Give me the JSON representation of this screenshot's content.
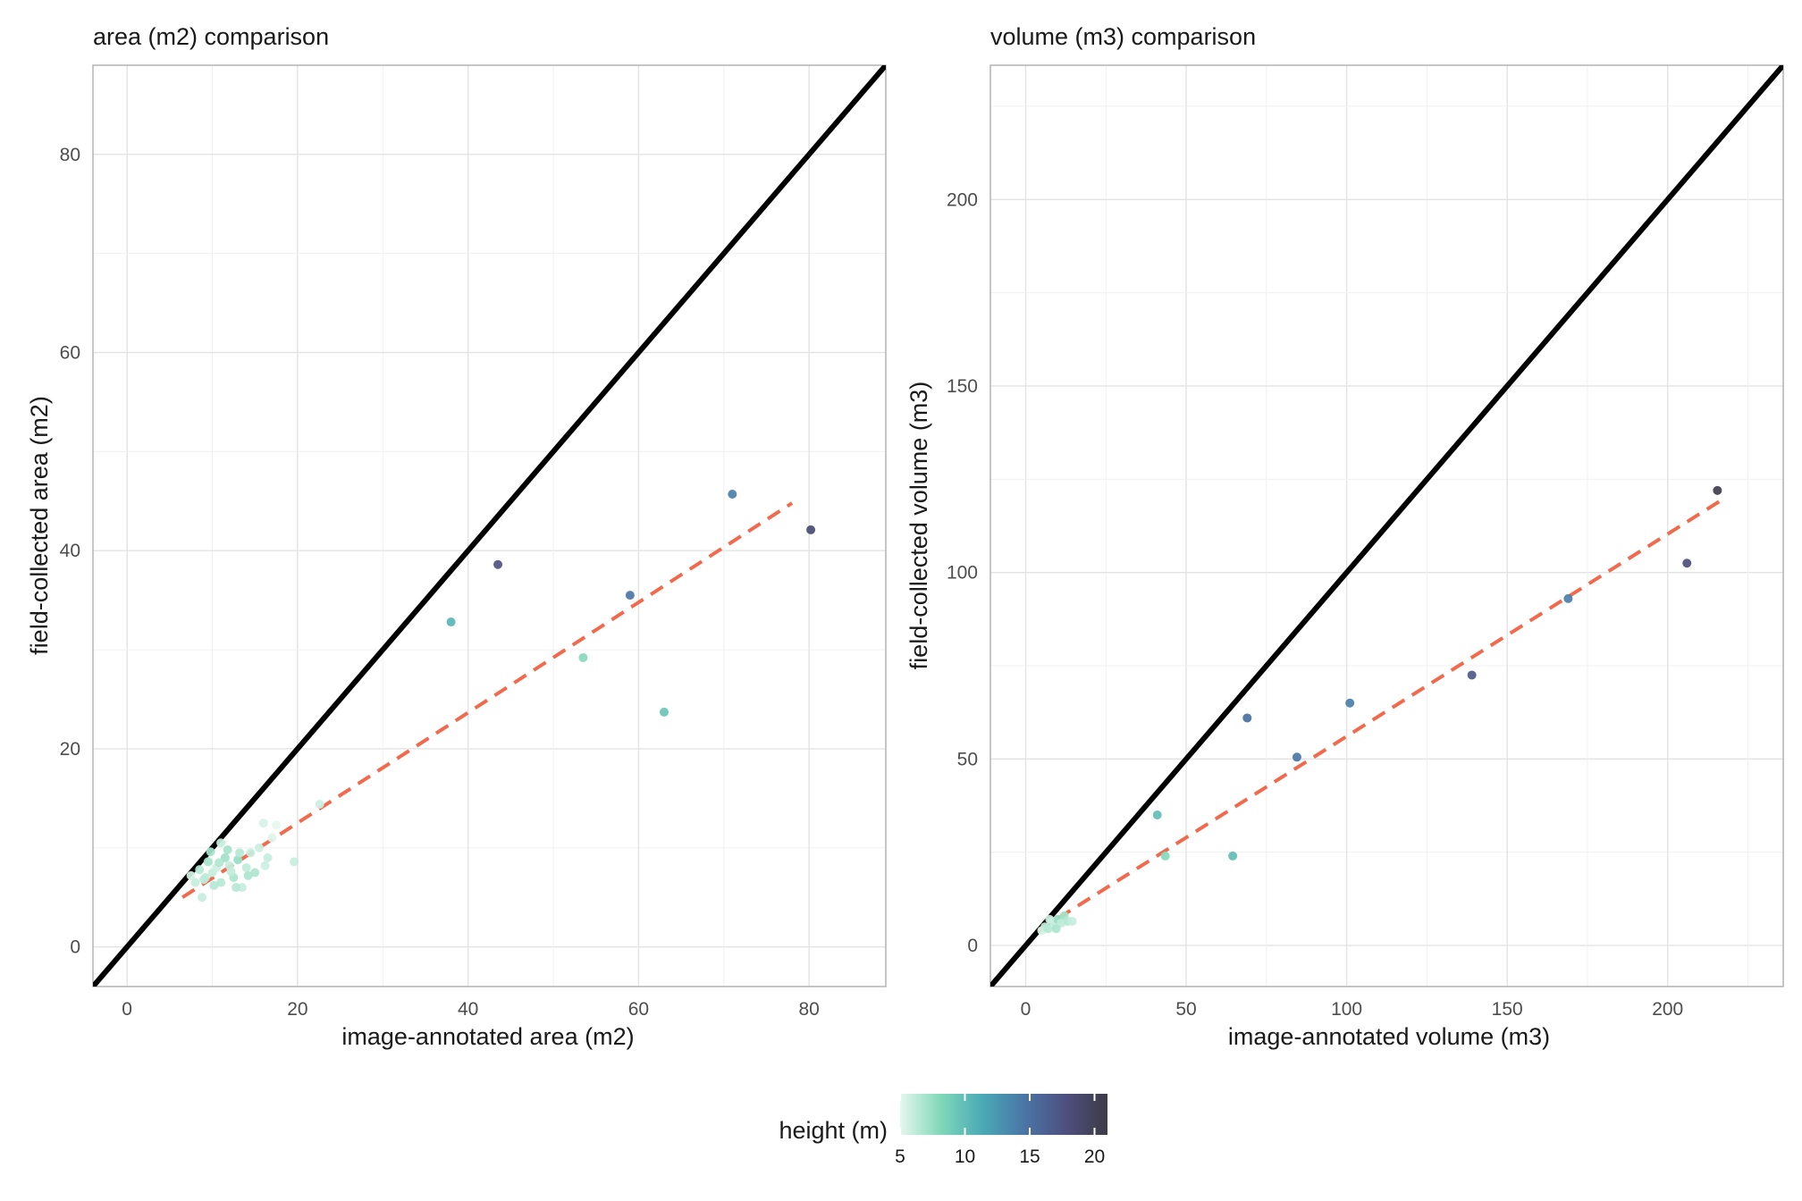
{
  "chart_data": [
    {
      "type": "scatter",
      "title": "area (m2) comparison",
      "xlabel": "image-annotated area (m2)",
      "ylabel": "field-collected area (m2)",
      "xlim": [
        -4,
        89
      ],
      "ylim": [
        -4,
        89
      ],
      "xticks": [
        0,
        20,
        40,
        60,
        80
      ],
      "yticks": [
        0,
        20,
        40,
        60,
        80
      ],
      "identity_line": true,
      "fit_line": {
        "x": [
          6.5,
          78
        ],
        "y": [
          5.0,
          44.8
        ],
        "color": "#f26a4d",
        "style": "dashed"
      },
      "points": [
        {
          "x": 7.5,
          "y": 7.2,
          "h": 5.5
        },
        {
          "x": 8.0,
          "y": 6.5,
          "h": 6.0
        },
        {
          "x": 8.5,
          "y": 7.8,
          "h": 6.5
        },
        {
          "x": 9.0,
          "y": 6.8,
          "h": 6.2
        },
        {
          "x": 9.5,
          "y": 8.6,
          "h": 7.0
        },
        {
          "x": 10.0,
          "y": 7.5,
          "h": 6.0
        },
        {
          "x": 10.5,
          "y": 8.0,
          "h": 5.8
        },
        {
          "x": 11.0,
          "y": 6.5,
          "h": 6.5
        },
        {
          "x": 11.5,
          "y": 9.0,
          "h": 7.2
        },
        {
          "x": 12.0,
          "y": 8.2,
          "h": 6.0
        },
        {
          "x": 12.5,
          "y": 7.0,
          "h": 6.8
        },
        {
          "x": 13.0,
          "y": 8.8,
          "h": 7.5
        },
        {
          "x": 13.5,
          "y": 6.0,
          "h": 6.0
        },
        {
          "x": 14.0,
          "y": 8.0,
          "h": 6.2
        },
        {
          "x": 9.8,
          "y": 9.6,
          "h": 7.0
        },
        {
          "x": 10.2,
          "y": 6.2,
          "h": 6.5
        },
        {
          "x": 8.8,
          "y": 5.0,
          "h": 6.0
        },
        {
          "x": 11.8,
          "y": 9.8,
          "h": 7.0
        },
        {
          "x": 12.8,
          "y": 6.0,
          "h": 6.5
        },
        {
          "x": 14.5,
          "y": 9.5,
          "h": 6.0
        },
        {
          "x": 15.0,
          "y": 7.5,
          "h": 6.8
        },
        {
          "x": 15.5,
          "y": 10.0,
          "h": 5.8
        },
        {
          "x": 16.0,
          "y": 12.5,
          "h": 5.5
        },
        {
          "x": 16.5,
          "y": 9.0,
          "h": 6.0
        },
        {
          "x": 17.0,
          "y": 11.0,
          "h": 5.2
        },
        {
          "x": 17.5,
          "y": 12.3,
          "h": 5.0
        },
        {
          "x": 11.0,
          "y": 10.5,
          "h": 6.0
        },
        {
          "x": 9.2,
          "y": 7.0,
          "h": 6.3
        },
        {
          "x": 10.8,
          "y": 8.5,
          "h": 6.7
        },
        {
          "x": 12.2,
          "y": 7.6,
          "h": 6.1
        },
        {
          "x": 13.2,
          "y": 9.5,
          "h": 6.5
        },
        {
          "x": 14.2,
          "y": 7.2,
          "h": 6.8
        },
        {
          "x": 16.2,
          "y": 8.2,
          "h": 5.8
        },
        {
          "x": 19.6,
          "y": 8.6,
          "h": 6.0
        },
        {
          "x": 22.6,
          "y": 14.4,
          "h": 5.8
        },
        {
          "x": 38.0,
          "y": 32.8,
          "h": 10.5
        },
        {
          "x": 43.5,
          "y": 38.6,
          "h": 17.5
        },
        {
          "x": 53.5,
          "y": 29.2,
          "h": 8.0
        },
        {
          "x": 59.0,
          "y": 35.5,
          "h": 14.5
        },
        {
          "x": 63.0,
          "y": 23.7,
          "h": 9.5
        },
        {
          "x": 71.0,
          "y": 45.7,
          "h": 14.0
        },
        {
          "x": 80.2,
          "y": 42.1,
          "h": 18.5
        }
      ]
    },
    {
      "type": "scatter",
      "title": "volume (m3) comparison",
      "xlabel": "image-annotated volume (m3)",
      "ylabel": "field-collected volume (m3)",
      "xlim": [
        -11,
        236
      ],
      "ylim": [
        -11,
        236
      ],
      "xticks": [
        0,
        50,
        100,
        150,
        200
      ],
      "yticks": [
        0,
        50,
        100,
        150,
        200
      ],
      "identity_line": true,
      "fit_line": {
        "x": [
          4,
          216
        ],
        "y": [
          4,
          119
        ],
        "color": "#f26a4d",
        "style": "dashed"
      },
      "points": [
        {
          "x": 5.0,
          "y": 4.0,
          "h": 5.5
        },
        {
          "x": 6.0,
          "y": 5.0,
          "h": 6.0
        },
        {
          "x": 7.0,
          "y": 4.5,
          "h": 6.5
        },
        {
          "x": 8.0,
          "y": 6.5,
          "h": 7.0
        },
        {
          "x": 9.0,
          "y": 5.5,
          "h": 6.0
        },
        {
          "x": 10.0,
          "y": 7.0,
          "h": 7.5
        },
        {
          "x": 11.0,
          "y": 6.0,
          "h": 6.2
        },
        {
          "x": 12.0,
          "y": 8.0,
          "h": 7.0
        },
        {
          "x": 13.0,
          "y": 6.5,
          "h": 6.5
        },
        {
          "x": 14.5,
          "y": 6.5,
          "h": 6.0
        },
        {
          "x": 7.5,
          "y": 7.0,
          "h": 5.8
        },
        {
          "x": 9.5,
          "y": 4.5,
          "h": 6.8
        },
        {
          "x": 41.0,
          "y": 35.0,
          "h": 10.0
        },
        {
          "x": 43.5,
          "y": 24.0,
          "h": 8.0
        },
        {
          "x": 64.5,
          "y": 24.0,
          "h": 10.0
        },
        {
          "x": 69.0,
          "y": 61.0,
          "h": 15.0
        },
        {
          "x": 84.5,
          "y": 50.5,
          "h": 14.5
        },
        {
          "x": 101.0,
          "y": 65.0,
          "h": 14.0
        },
        {
          "x": 139.0,
          "y": 72.5,
          "h": 17.0
        },
        {
          "x": 169.0,
          "y": 93.0,
          "h": 14.0
        },
        {
          "x": 206.0,
          "y": 102.5,
          "h": 18.0
        },
        {
          "x": 215.5,
          "y": 122.0,
          "h": 20.5
        }
      ]
    }
  ],
  "legend": {
    "title": "height (m)",
    "min": 5,
    "max": 21,
    "ticks": [
      5,
      10,
      15,
      20
    ],
    "colors": [
      "#e5f7ee",
      "#7fd7b8",
      "#4aa9b6",
      "#4a75a6",
      "#4e4f7f",
      "#3d3b45"
    ]
  }
}
